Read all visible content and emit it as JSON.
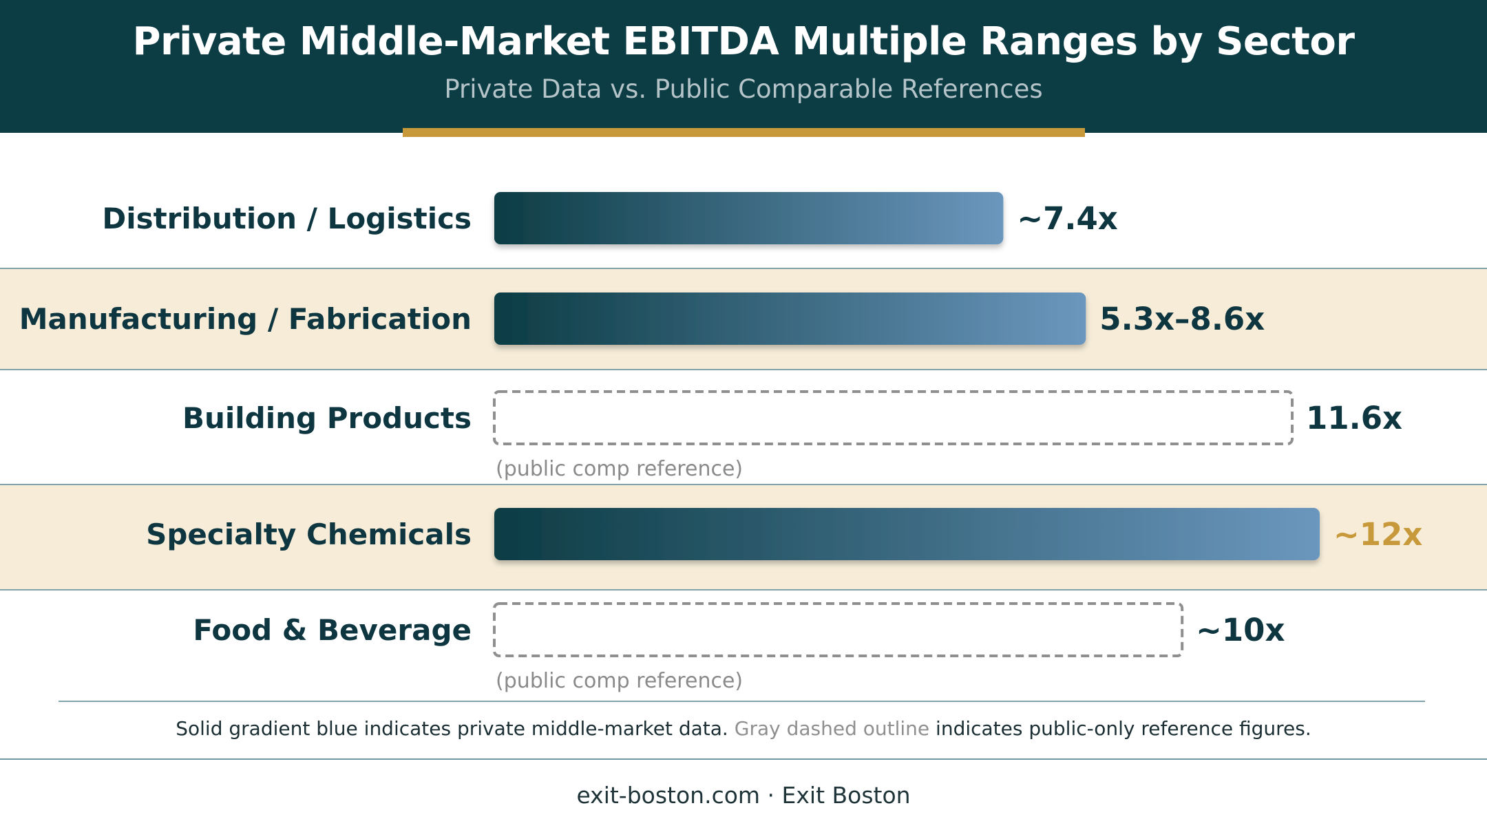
{
  "header": {
    "title": "Private Middle-Market EBITDA Multiple Ranges by Sector",
    "subtitle": "Private Data vs. Public Comparable References"
  },
  "colors": {
    "header_bg": "#0c3c44",
    "accent": "#c8993a",
    "bar_gradient_start": "#0c3c44",
    "bar_gradient_end": "#6b97be",
    "band": "#f6ecd8",
    "dashed_outline": "#8f8f8f"
  },
  "chart_data": {
    "type": "bar",
    "orientation": "horizontal",
    "categories": [
      "Distribution / Logistics",
      "Manufacturing / Fabrication",
      "Building Products",
      "Specialty Chemicals",
      "Food & Beverage"
    ],
    "values": [
      7.4,
      8.6,
      11.6,
      12,
      10
    ],
    "value_labels": [
      "~7.4x",
      "5.3x–8.6x",
      "11.6x",
      "~12x",
      "~10x"
    ],
    "kind": [
      "private",
      "private",
      "public",
      "private",
      "public"
    ],
    "notes": [
      "",
      "",
      "(public comp reference)",
      "",
      "(public comp reference)"
    ],
    "highlighted": [
      false,
      false,
      false,
      true,
      false
    ],
    "xlim": [
      0,
      12
    ],
    "grid": false,
    "legend": {
      "private_text": "Solid gradient blue indicates private middle-market data.",
      "public_text": "Gray dashed outline",
      "public_suffix": "indicates public-only reference figures."
    }
  },
  "footer": {
    "text": "exit-boston.com · Exit Boston"
  }
}
